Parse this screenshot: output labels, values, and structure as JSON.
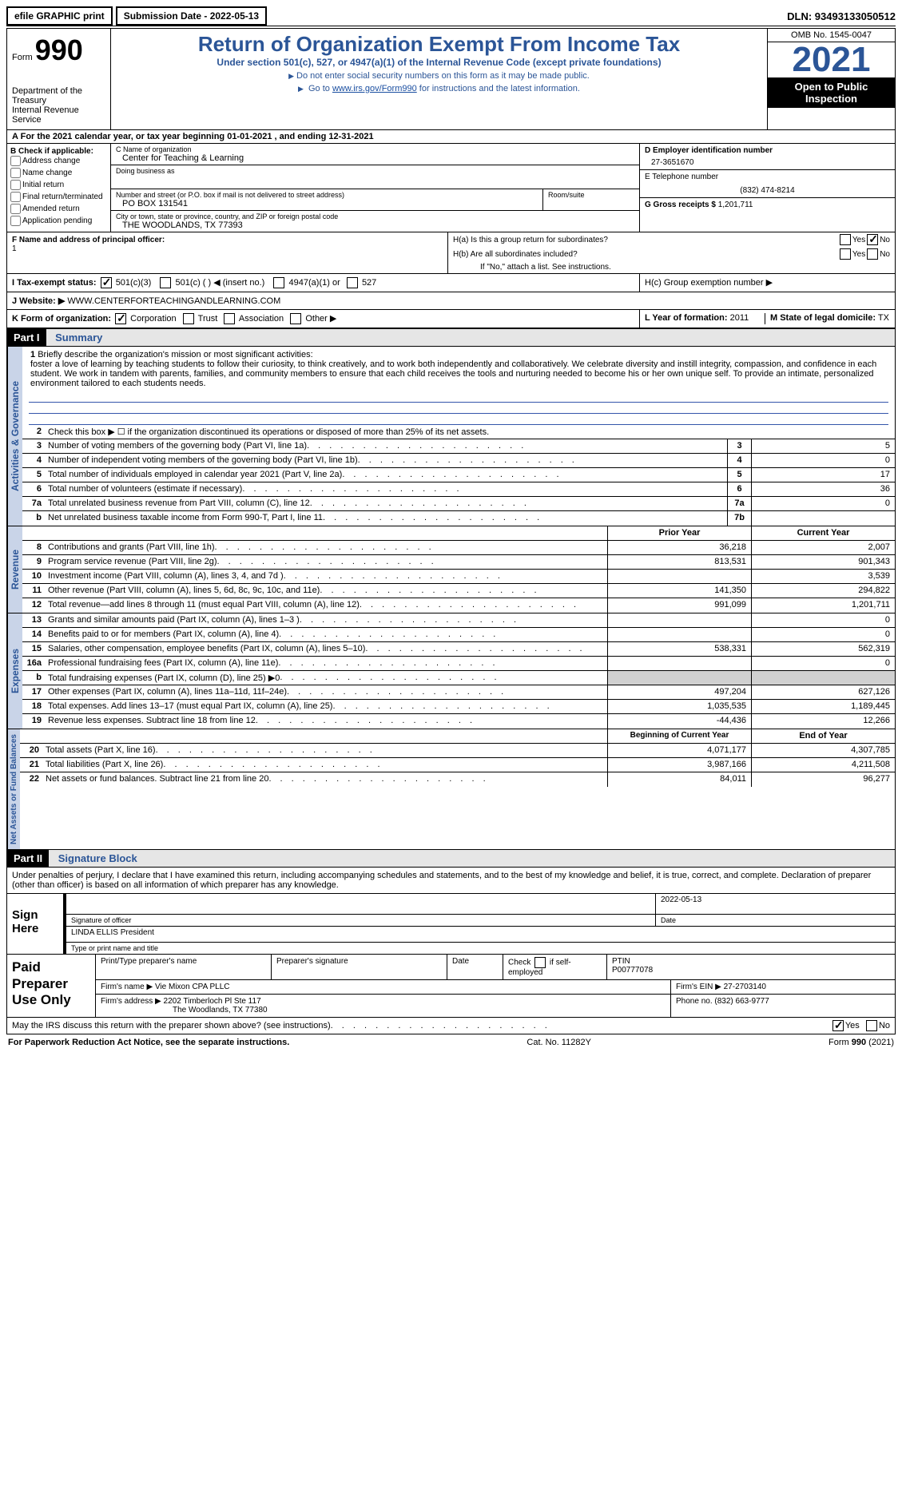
{
  "top": {
    "efile": "efile GRAPHIC print",
    "submission": "Submission Date - 2022-05-13",
    "dln": "DLN: 93493133050512"
  },
  "header": {
    "form": "Form",
    "formnum": "990",
    "dept": "Department of the Treasury",
    "irs": "Internal Revenue Service",
    "title": "Return of Organization Exempt From Income Tax",
    "subtitle": "Under section 501(c), 527, or 4947(a)(1) of the Internal Revenue Code (except private foundations)",
    "inst1": "Do not enter social security numbers on this form as it may be made public.",
    "inst2_pre": "Go to ",
    "inst2_link": "www.irs.gov/Form990",
    "inst2_post": " for instructions and the latest information.",
    "omb": "OMB No. 1545-0047",
    "year": "2021",
    "inspection": "Open to Public Inspection"
  },
  "lineA": "For the 2021 calendar year, or tax year beginning 01-01-2021   , and ending 12-31-2021",
  "boxB": {
    "title": "B Check if applicable:",
    "opts": [
      "Address change",
      "Name change",
      "Initial return",
      "Final return/terminated",
      "Amended return",
      "Application pending"
    ]
  },
  "boxC": {
    "name_label": "C Name of organization",
    "name_val": "Center for Teaching & Learning",
    "dba_label": "Doing business as",
    "street_label": "Number and street (or P.O. box if mail is not delivered to street address)",
    "street_val": "PO BOX 131541",
    "room_label": "Room/suite",
    "city_label": "City or town, state or province, country, and ZIP or foreign postal code",
    "city_val": "THE WOODLANDS, TX  77393"
  },
  "boxD": {
    "label": "D Employer identification number",
    "val": "27-3651670"
  },
  "boxE": {
    "label": "E Telephone number",
    "val": "(832) 474-8214"
  },
  "boxG": {
    "label": "G Gross receipts $",
    "val": "1,201,711"
  },
  "boxF": {
    "label": "F  Name and address of principal officer:",
    "val": "1"
  },
  "boxH": {
    "a": "H(a)  Is this a group return for subordinates?",
    "b": "H(b)  Are all subordinates included?",
    "b_note": "If \"No,\" attach a list. See instructions.",
    "c": "H(c)  Group exemption number ▶",
    "yes": "Yes",
    "no": "No"
  },
  "rowI": {
    "label": "I   Tax-exempt status:",
    "o1": "501(c)(3)",
    "o2": "501(c) (    ) ◀ (insert no.)",
    "o3": "4947(a)(1) or",
    "o4": "527"
  },
  "rowJ": {
    "label": "J   Website: ▶",
    "val": " WWW.CENTERFORTEACHINGANDLEARNING.COM"
  },
  "rowK": {
    "label": "K Form of organization:",
    "opts": [
      "Corporation",
      "Trust",
      "Association",
      "Other ▶"
    ]
  },
  "rowL": {
    "label": "L Year of formation:",
    "val": "2011"
  },
  "rowM": {
    "label": "M State of legal domicile:",
    "val": "TX"
  },
  "parts": {
    "p1": "Part I",
    "p1_title": "Summary",
    "p2": "Part II",
    "p2_title": "Signature Block"
  },
  "tabs": {
    "t1": "Activities & Governance",
    "t2": "Revenue",
    "t3": "Expenses",
    "t4": "Net Assets or Fund Balances"
  },
  "summary": {
    "l1_label": "Briefly describe the organization's mission or most significant activities:",
    "l1_text": "foster a love of learning by teaching students to follow their curiosity, to think creatively, and to work both independently and collaboratively. We celebrate diversity and instill integrity, compassion, and confidence in each student. We work in tandem with parents, families, and community members to ensure that each child receives the tools and nurturing needed to become his or her own unique self. To provide an intimate, personalized environment tailored to each students needs.",
    "l2": "Check this box ▶ ☐  if the organization discontinued its operations or disposed of more than 25% of its net assets.",
    "rows_gov": [
      {
        "n": "3",
        "d": "Number of voting members of the governing body (Part VI, line 1a)",
        "box": "3",
        "v": "5"
      },
      {
        "n": "4",
        "d": "Number of independent voting members of the governing body (Part VI, line 1b)",
        "box": "4",
        "v": "0"
      },
      {
        "n": "5",
        "d": "Total number of individuals employed in calendar year 2021 (Part V, line 2a)",
        "box": "5",
        "v": "17"
      },
      {
        "n": "6",
        "d": "Total number of volunteers (estimate if necessary)",
        "box": "6",
        "v": "36"
      },
      {
        "n": "7a",
        "d": "Total unrelated business revenue from Part VIII, column (C), line 12",
        "box": "7a",
        "v": "0"
      },
      {
        "n": "b",
        "d": "Net unrelated business taxable income from Form 990-T, Part I, line 11",
        "box": "7b",
        "v": ""
      }
    ],
    "col_prior": "Prior Year",
    "col_curr": "Current Year",
    "rows_rev": [
      {
        "n": "8",
        "d": "Contributions and grants (Part VIII, line 1h)",
        "p": "36,218",
        "c": "2,007"
      },
      {
        "n": "9",
        "d": "Program service revenue (Part VIII, line 2g)",
        "p": "813,531",
        "c": "901,343"
      },
      {
        "n": "10",
        "d": "Investment income (Part VIII, column (A), lines 3, 4, and 7d )",
        "p": "",
        "c": "3,539"
      },
      {
        "n": "11",
        "d": "Other revenue (Part VIII, column (A), lines 5, 6d, 8c, 9c, 10c, and 11e)",
        "p": "141,350",
        "c": "294,822"
      },
      {
        "n": "12",
        "d": "Total revenue—add lines 8 through 11 (must equal Part VIII, column (A), line 12)",
        "p": "991,099",
        "c": "1,201,711"
      }
    ],
    "rows_exp": [
      {
        "n": "13",
        "d": "Grants and similar amounts paid (Part IX, column (A), lines 1–3 )",
        "p": "",
        "c": "0"
      },
      {
        "n": "14",
        "d": "Benefits paid to or for members (Part IX, column (A), line 4)",
        "p": "",
        "c": "0"
      },
      {
        "n": "15",
        "d": "Salaries, other compensation, employee benefits (Part IX, column (A), lines 5–10)",
        "p": "538,331",
        "c": "562,319"
      },
      {
        "n": "16a",
        "d": "Professional fundraising fees (Part IX, column (A), line 11e)",
        "p": "",
        "c": "0"
      },
      {
        "n": "b",
        "d": "Total fundraising expenses (Part IX, column (D), line 25) ▶0",
        "p": "shade",
        "c": "shade"
      },
      {
        "n": "17",
        "d": "Other expenses (Part IX, column (A), lines 11a–11d, 11f–24e)",
        "p": "497,204",
        "c": "627,126"
      },
      {
        "n": "18",
        "d": "Total expenses. Add lines 13–17 (must equal Part IX, column (A), line 25)",
        "p": "1,035,535",
        "c": "1,189,445"
      },
      {
        "n": "19",
        "d": "Revenue less expenses. Subtract line 18 from line 12",
        "p": "-44,436",
        "c": "12,266"
      }
    ],
    "col_begin": "Beginning of Current Year",
    "col_end": "End of Year",
    "rows_net": [
      {
        "n": "20",
        "d": "Total assets (Part X, line 16)",
        "p": "4,071,177",
        "c": "4,307,785"
      },
      {
        "n": "21",
        "d": "Total liabilities (Part X, line 26)",
        "p": "3,987,166",
        "c": "4,211,508"
      },
      {
        "n": "22",
        "d": "Net assets or fund balances. Subtract line 21 from line 20",
        "p": "84,011",
        "c": "96,277"
      }
    ]
  },
  "sig": {
    "intro": "Under penalties of perjury, I declare that I have examined this return, including accompanying schedules and statements, and to the best of my knowledge and belief, it is true, correct, and complete. Declaration of preparer (other than officer) is based on all information of which preparer has any knowledge.",
    "sign_here": "Sign Here",
    "sig_officer": "Signature of officer",
    "date": "Date",
    "date_val": "2022-05-13",
    "name_val": "LINDA ELLIS  President",
    "name_label": "Type or print name and title"
  },
  "paid": {
    "title": "Paid Preparer Use Only",
    "h1": "Print/Type preparer's name",
    "h2": "Preparer's signature",
    "h3": "Date",
    "h4_pre": "Check",
    "h4_post": "if self-employed",
    "h5": "PTIN",
    "ptin": "P00777078",
    "firm_name_l": "Firm's name   ▶",
    "firm_name": "Vie Mixon CPA PLLC",
    "firm_ein_l": "Firm's EIN ▶",
    "firm_ein": "27-2703140",
    "firm_addr_l": "Firm's address ▶",
    "firm_addr1": "2202 Timberloch Pl Ste 117",
    "firm_addr2": "The Woodlands, TX  77380",
    "phone_l": "Phone no.",
    "phone": "(832) 663-9777"
  },
  "discuss": {
    "text": "May the IRS discuss this return with the preparer shown above? (see instructions)",
    "yes": "Yes",
    "no": "No"
  },
  "footer": {
    "left": "For Paperwork Reduction Act Notice, see the separate instructions.",
    "mid": "Cat. No. 11282Y",
    "right_pre": "Form ",
    "right_form": "990",
    "right_post": " (2021)"
  }
}
